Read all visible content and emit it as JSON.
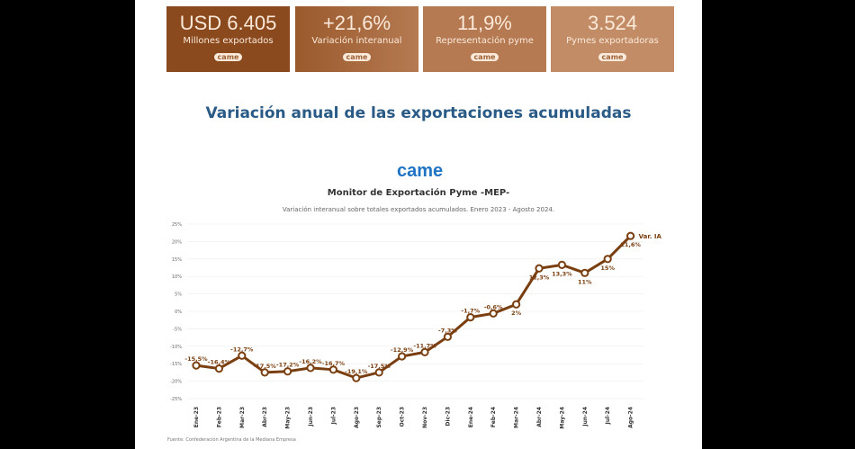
{
  "cards": [
    {
      "value": "USD 6.405",
      "label": "Millones exportados",
      "logo": "came",
      "color": "#8a4a1e"
    },
    {
      "value": "+21,6%",
      "label": "Variación interanual",
      "logo": "came",
      "color": "#9a5a2c"
    },
    {
      "value": "11,9%",
      "label": "Representación pyme",
      "logo": "came",
      "color": "#b57a52"
    },
    {
      "value": "3.524",
      "label": "Pymes exportadoras",
      "logo": "came",
      "color": "#c28d66"
    }
  ],
  "heading": "Variación anual de las exportaciones acumuladas",
  "brand": "came",
  "chart_data": {
    "type": "line",
    "title": "Monitor de Exportación Pyme -MEP-",
    "subtitle": "Variación interanual sobre totales exportados acumulados. Enero 2023 - Agosto 2024.",
    "categories": [
      "Ene-23",
      "Feb-23",
      "Mar-23",
      "Abr-23",
      "May-23",
      "Jun-23",
      "Jul-23",
      "Ago-23",
      "Sep-23",
      "Oct-23",
      "Nov-23",
      "Dic-23",
      "Ene-24",
      "Feb-24",
      "Mar-24",
      "Abr-24",
      "May-24",
      "Jun-24",
      "Jul-24",
      "Ago-24"
    ],
    "series": [
      {
        "name": "Var. IA",
        "values": [
          -15.5,
          -16.4,
          -12.7,
          -17.5,
          -17.2,
          -16.2,
          -16.7,
          -19.1,
          -17.5,
          -12.9,
          -11.7,
          -7.3,
          -1.7,
          -0.6,
          2,
          12.3,
          13.3,
          11,
          15,
          21.6
        ],
        "labels": [
          "-15,5%",
          "-16,4%",
          "-12,7%",
          "-17,5%",
          "-17,2%",
          "-16,2%",
          "-16,7%",
          "-19,1%",
          "-17,5%",
          "-12,9%",
          "-11,7%",
          "-7,3%",
          "-1,7%",
          "-0,6%",
          "2%",
          "12,3%",
          "13,3%",
          "11%",
          "15%",
          "21,6%"
        ]
      }
    ],
    "yticks": [
      "25%",
      "20%",
      "15%",
      "10%",
      "5%",
      "0%",
      "-5%",
      "-10%",
      "-15%",
      "-20%",
      "-25%"
    ],
    "ylim": [
      -25,
      25
    ],
    "line_color": "#7a3f10",
    "grid": true,
    "legend": "end-of-line"
  },
  "source": "Fuente: Confederación Argentina de la Mediana Empresa"
}
